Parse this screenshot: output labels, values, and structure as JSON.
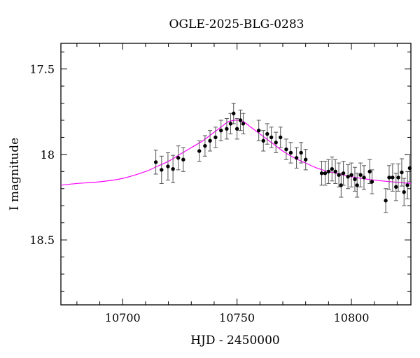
{
  "chart_data": {
    "type": "scatter",
    "title": "OGLE-2025-BLG-0283",
    "xlabel": "HJD - 2450000",
    "ylabel": "I magnitude",
    "xlim": [
      10673,
      10826
    ],
    "ylim": [
      18.88,
      17.35
    ],
    "y_inverted": true,
    "x_ticks": [
      10700,
      10750,
      10800
    ],
    "x_tick_labels": [
      "10700",
      "10750",
      "10800"
    ],
    "y_ticks": [
      17.5,
      18,
      18.5
    ],
    "y_tick_labels": [
      "17.5",
      "18",
      "18.5"
    ],
    "grid": false,
    "point_color": "#000000",
    "model_color": "#ff00ff",
    "series": [
      {
        "kind": "points_with_errorbars",
        "x": [
          10714.5,
          10717.0,
          10719.8,
          10722.0,
          10724.3,
          10726.5,
          10733.5,
          10736.0,
          10738.2,
          10740.6,
          10743.0,
          10745.5,
          10747.2,
          10748.5,
          10750.0,
          10751.5,
          10752.7,
          10759.5,
          10761.5,
          10763.2,
          10765.0,
          10767.0,
          10769.0,
          10771.5,
          10773.5,
          10776.0,
          10778.0,
          10780.0,
          10787.0,
          10788.5,
          10790.0,
          10791.5,
          10793.0,
          10794.5,
          10795.5,
          10796.5,
          10798.5,
          10800.0,
          10801.5,
          10802.5,
          10804.0,
          10805.5,
          10808.0,
          10809.0,
          10815.0,
          10816.5,
          10818.0,
          10819.5,
          10820.5,
          10822.0,
          10823.0,
          10824.5,
          10825.5
        ],
        "y": [
          18.045,
          18.09,
          18.07,
          18.085,
          18.02,
          18.03,
          17.98,
          17.95,
          17.92,
          17.9,
          17.86,
          17.85,
          17.82,
          17.76,
          17.85,
          17.8,
          17.82,
          17.86,
          17.92,
          17.88,
          17.9,
          17.93,
          17.9,
          17.97,
          17.99,
          18.02,
          17.99,
          18.03,
          18.11,
          18.11,
          18.1,
          18.085,
          18.1,
          18.12,
          18.18,
          18.11,
          18.13,
          18.12,
          18.145,
          18.18,
          18.12,
          18.135,
          18.1,
          18.16,
          18.27,
          18.135,
          18.135,
          18.19,
          18.135,
          18.105,
          18.22,
          18.18,
          18.08
        ],
        "err": [
          0.07,
          0.08,
          0.08,
          0.08,
          0.07,
          0.07,
          0.06,
          0.06,
          0.06,
          0.06,
          0.06,
          0.06,
          0.06,
          0.06,
          0.06,
          0.06,
          0.06,
          0.06,
          0.06,
          0.06,
          0.06,
          0.06,
          0.06,
          0.06,
          0.06,
          0.06,
          0.06,
          0.06,
          0.07,
          0.07,
          0.07,
          0.07,
          0.07,
          0.07,
          0.07,
          0.07,
          0.07,
          0.07,
          0.07,
          0.07,
          0.07,
          0.07,
          0.07,
          0.07,
          0.07,
          0.07,
          0.08,
          0.08,
          0.08,
          0.08,
          0.08,
          0.08,
          0.08
        ]
      },
      {
        "kind": "model_curve",
        "x": [
          10673,
          10680,
          10690,
          10700,
          10710,
          10715,
          10720,
          10725,
          10730,
          10735,
          10740,
          10743,
          10746,
          10749,
          10751,
          10753,
          10756,
          10760,
          10765,
          10770,
          10775,
          10780,
          10785,
          10790,
          10800,
          10810,
          10826
        ],
        "y": [
          18.18,
          18.17,
          18.16,
          18.14,
          18.1,
          18.07,
          18.04,
          18.0,
          17.96,
          17.92,
          17.87,
          17.84,
          17.81,
          17.8,
          17.8,
          17.81,
          17.84,
          17.88,
          17.93,
          17.98,
          18.02,
          18.05,
          18.08,
          18.1,
          18.13,
          18.15,
          18.17
        ]
      }
    ]
  }
}
